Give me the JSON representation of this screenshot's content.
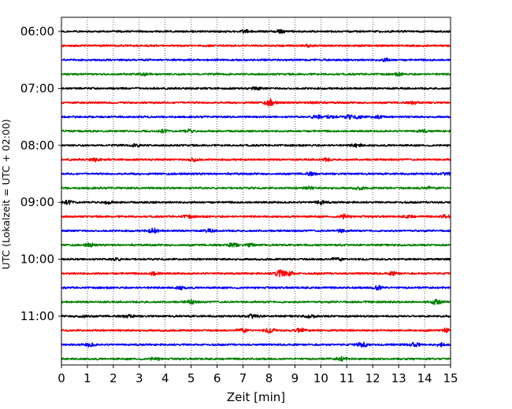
{
  "chart_data": {
    "type": "line",
    "title": "",
    "xlabel": "Zeit  [min]",
    "ylabel": "UTC (Lokalzeit = UTC + 02:00)",
    "xlim": [
      0,
      15
    ],
    "x_ticks": [
      "0",
      "1",
      "2",
      "3",
      "4",
      "5",
      "6",
      "7",
      "8",
      "9",
      "10",
      "11",
      "12",
      "13",
      "14",
      "15"
    ],
    "y_ticks": [
      "06:00",
      "07:00",
      "08:00",
      "09:00",
      "10:00",
      "11:00"
    ],
    "grid": "vertical dotted",
    "line_colors": [
      "#000000",
      "#ff0000",
      "#0000ff",
      "#008000"
    ],
    "series": [
      {
        "start": "06:00",
        "color": "#000000",
        "events": [
          [
            7.1,
            1.5
          ],
          [
            8.4,
            1.8
          ]
        ]
      },
      {
        "start": "06:15",
        "color": "#ff0000",
        "events": [
          [
            9.5,
            1.2
          ]
        ]
      },
      {
        "start": "06:30",
        "color": "#0000ff",
        "events": [
          [
            12.5,
            1.6
          ]
        ]
      },
      {
        "start": "06:45",
        "color": "#008000",
        "events": [
          [
            3.2,
            1.3
          ],
          [
            13.0,
            1.3
          ]
        ]
      },
      {
        "start": "07:00",
        "color": "#000000",
        "events": [
          [
            7.5,
            1.6
          ]
        ]
      },
      {
        "start": "07:15",
        "color": "#ff0000",
        "events": [
          [
            8.05,
            4.0
          ],
          [
            9.8,
            1.4
          ],
          [
            13.6,
            1.4
          ]
        ]
      },
      {
        "start": "07:30",
        "color": "#0000ff",
        "events": [
          [
            9.85,
            3.0
          ],
          [
            10.4,
            2.0
          ],
          [
            11.1,
            2.2
          ],
          [
            11.5,
            2.0
          ],
          [
            12.2,
            2.2
          ]
        ]
      },
      {
        "start": "07:45",
        "color": "#008000",
        "events": [
          [
            3.9,
            1.6
          ],
          [
            4.9,
            1.8
          ],
          [
            13.9,
            1.4
          ]
        ]
      },
      {
        "start": "08:00",
        "color": "#000000",
        "events": [
          [
            2.9,
            1.6
          ],
          [
            11.4,
            2.0
          ]
        ]
      },
      {
        "start": "08:15",
        "color": "#ff0000",
        "events": [
          [
            1.3,
            1.8
          ],
          [
            5.1,
            2.6
          ],
          [
            10.2,
            1.6
          ]
        ]
      },
      {
        "start": "08:30",
        "color": "#0000ff",
        "events": [
          [
            9.6,
            1.6
          ],
          [
            14.9,
            1.8
          ]
        ]
      },
      {
        "start": "08:45",
        "color": "#008000",
        "events": [
          [
            9.5,
            1.7
          ],
          [
            11.5,
            1.4
          ],
          [
            14.1,
            1.6
          ]
        ]
      },
      {
        "start": "09:00",
        "color": "#000000",
        "events": [
          [
            0.25,
            2.0
          ],
          [
            1.8,
            1.6
          ],
          [
            10.0,
            2.4
          ]
        ]
      },
      {
        "start": "09:15",
        "color": "#ff0000",
        "events": [
          [
            4.9,
            1.8
          ],
          [
            10.9,
            2.6
          ],
          [
            13.4,
            1.6
          ],
          [
            14.8,
            1.6
          ]
        ]
      },
      {
        "start": "09:30",
        "color": "#0000ff",
        "events": [
          [
            3.55,
            3.0
          ],
          [
            5.7,
            1.8
          ],
          [
            10.8,
            1.6
          ]
        ]
      },
      {
        "start": "09:45",
        "color": "#008000",
        "events": [
          [
            1.1,
            1.8
          ],
          [
            6.6,
            2.8
          ],
          [
            7.3,
            2.0
          ]
        ]
      },
      {
        "start": "10:00",
        "color": "#000000",
        "events": [
          [
            2.1,
            1.8
          ],
          [
            10.6,
            1.8
          ]
        ]
      },
      {
        "start": "10:15",
        "color": "#ff0000",
        "events": [
          [
            3.6,
            2.4
          ],
          [
            8.4,
            4.5
          ],
          [
            8.75,
            4.0
          ],
          [
            12.8,
            1.8
          ]
        ]
      },
      {
        "start": "10:30",
        "color": "#0000ff",
        "events": [
          [
            4.6,
            1.8
          ],
          [
            12.2,
            3.0
          ]
        ]
      },
      {
        "start": "10:45",
        "color": "#008000",
        "events": [
          [
            5.0,
            2.4
          ],
          [
            14.45,
            3.0
          ]
        ]
      },
      {
        "start": "11:00",
        "color": "#000000",
        "events": [
          [
            0.8,
            1.6
          ],
          [
            2.6,
            1.8
          ],
          [
            7.4,
            2.4
          ],
          [
            9.6,
            1.8
          ]
        ]
      },
      {
        "start": "11:15",
        "color": "#ff0000",
        "events": [
          [
            6.95,
            2.2
          ],
          [
            8.05,
            3.0
          ],
          [
            9.2,
            3.0
          ],
          [
            14.85,
            2.6
          ]
        ]
      },
      {
        "start": "11:30",
        "color": "#0000ff",
        "events": [
          [
            1.1,
            2.2
          ],
          [
            11.6,
            3.0
          ],
          [
            13.6,
            2.6
          ],
          [
            14.6,
            2.0
          ]
        ]
      },
      {
        "start": "11:45",
        "color": "#008000",
        "events": [
          [
            3.6,
            1.6
          ],
          [
            10.8,
            2.4
          ]
        ]
      }
    ]
  }
}
